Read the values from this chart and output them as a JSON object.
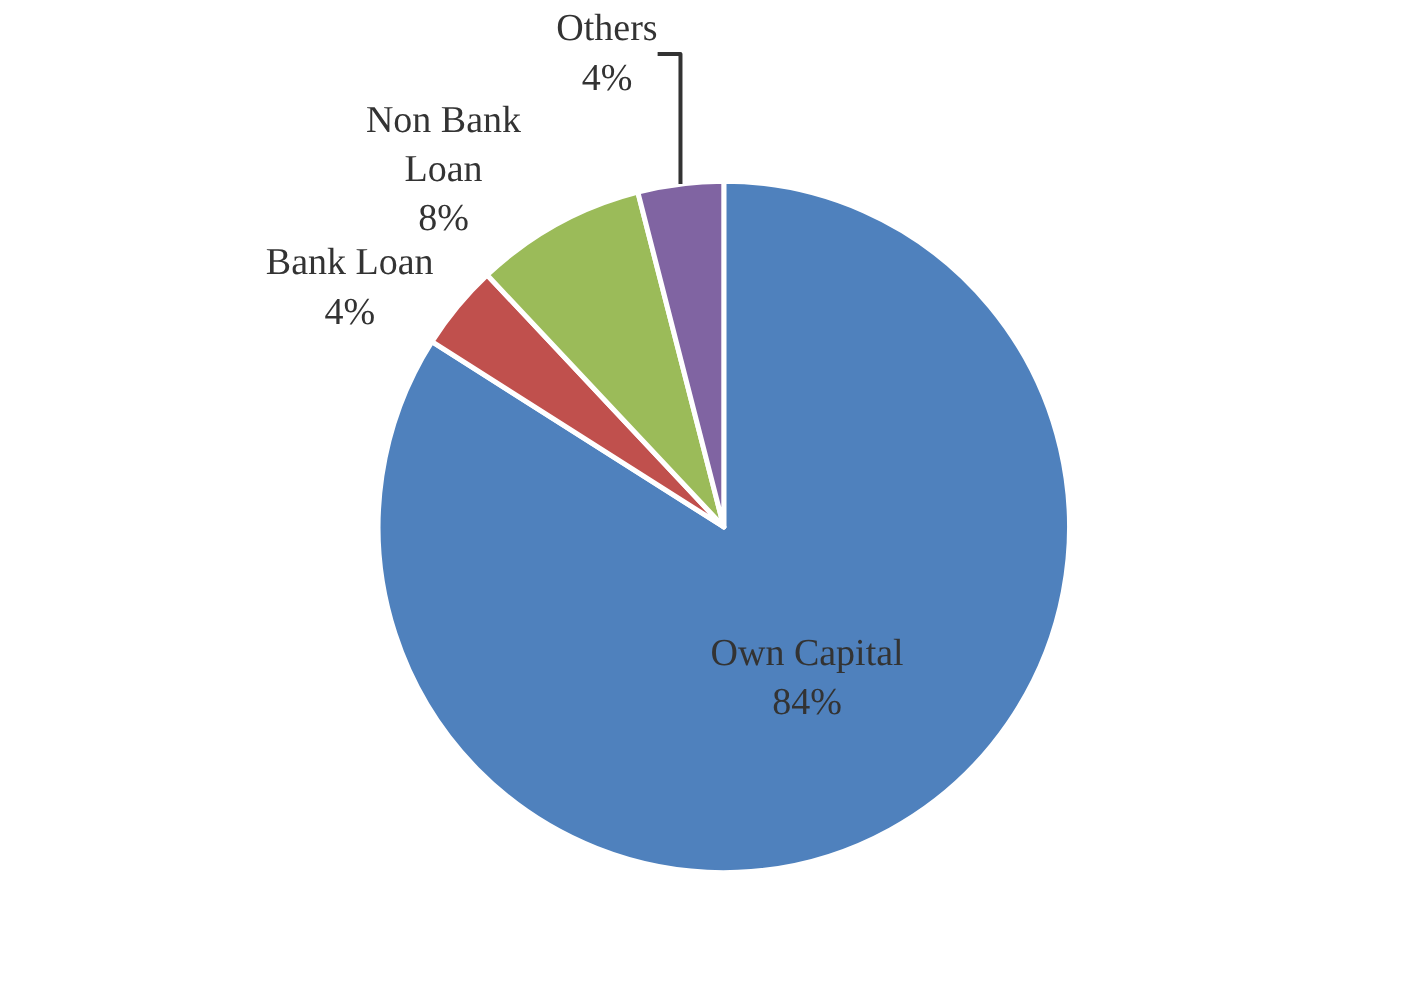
{
  "chart_data": {
    "type": "pie",
    "categories": [
      "Own Capital",
      "Bank Loan",
      "Non Bank Loan",
      "Others"
    ],
    "values": [
      84,
      4,
      8,
      4
    ],
    "value_labels": [
      "84%",
      "4%",
      "8%",
      "4%"
    ],
    "colors": [
      "#4f81bd",
      "#c0504d",
      "#9bbb59",
      "#8064a2"
    ],
    "legend": false
  }
}
